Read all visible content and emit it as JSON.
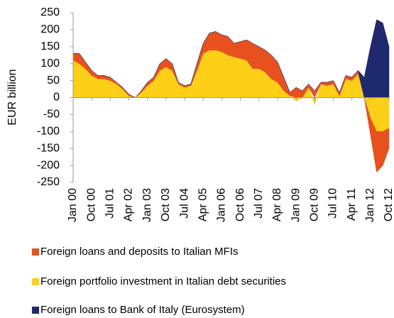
{
  "chart_data": {
    "type": "stacked-area",
    "y_label": "EUR billion",
    "categories": [
      "Jan 00",
      null,
      null,
      "Oct 00",
      null,
      null,
      "Jul 01",
      null,
      null,
      "Apr 02",
      null,
      null,
      "Jan 03",
      null,
      null,
      "Oct 03",
      null,
      null,
      "Jul 04",
      null,
      null,
      "Apr 05",
      null,
      null,
      "Jan 06",
      null,
      null,
      "Oct 06",
      null,
      null,
      "Jul 07",
      null,
      null,
      "Apr 08",
      null,
      null,
      "Jan 09",
      null,
      null,
      "Oct 09",
      null,
      null,
      "Jul 10",
      null,
      null,
      "Apr 11",
      null,
      null,
      "Jan 12",
      null,
      null,
      "Oct 12"
    ],
    "series": [
      {
        "name": "Foreign loans and deposits to Italian MFIs",
        "color": "#e8501e",
        "values": [
          20,
          30,
          20,
          15,
          10,
          10,
          10,
          5,
          5,
          5,
          0,
          5,
          10,
          10,
          20,
          25,
          20,
          5,
          5,
          5,
          20,
          30,
          50,
          55,
          50,
          55,
          40,
          50,
          60,
          75,
          65,
          65,
          70,
          60,
          40,
          10,
          30,
          20,
          10,
          20,
          5,
          10,
          10,
          10,
          10,
          10,
          10,
          0,
          -50,
          -120,
          -100,
          -60
        ]
      },
      {
        "name": "Foreign portfolio investment in Italian debt securities",
        "color": "#fdd017",
        "values": [
          110,
          100,
          85,
          65,
          55,
          55,
          50,
          40,
          25,
          5,
          0,
          15,
          35,
          50,
          80,
          90,
          80,
          40,
          30,
          35,
          80,
          130,
          140,
          140,
          135,
          125,
          120,
          115,
          110,
          85,
          85,
          75,
          55,
          45,
          20,
          5,
          -10,
          0,
          30,
          -20,
          40,
          35,
          40,
          5,
          55,
          50,
          70,
          0,
          -60,
          -100,
          -100,
          -90
        ]
      },
      {
        "name": "Foreign loans to Bank of Italy (Eurosystem)",
        "color": "#1f2a6e",
        "values": [
          0,
          0,
          0,
          0,
          0,
          0,
          0,
          0,
          0,
          0,
          0,
          0,
          0,
          0,
          0,
          0,
          0,
          0,
          0,
          0,
          0,
          0,
          0,
          0,
          0,
          0,
          0,
          0,
          0,
          0,
          0,
          0,
          0,
          0,
          0,
          0,
          0,
          0,
          0,
          0,
          0,
          0,
          0,
          0,
          0,
          0,
          0,
          60,
          150,
          230,
          220,
          150
        ]
      }
    ],
    "ylim": [
      -250,
      250
    ],
    "yticks": [
      -250,
      -200,
      -150,
      -100,
      -50,
      0,
      50,
      100,
      150,
      200,
      250
    ]
  }
}
